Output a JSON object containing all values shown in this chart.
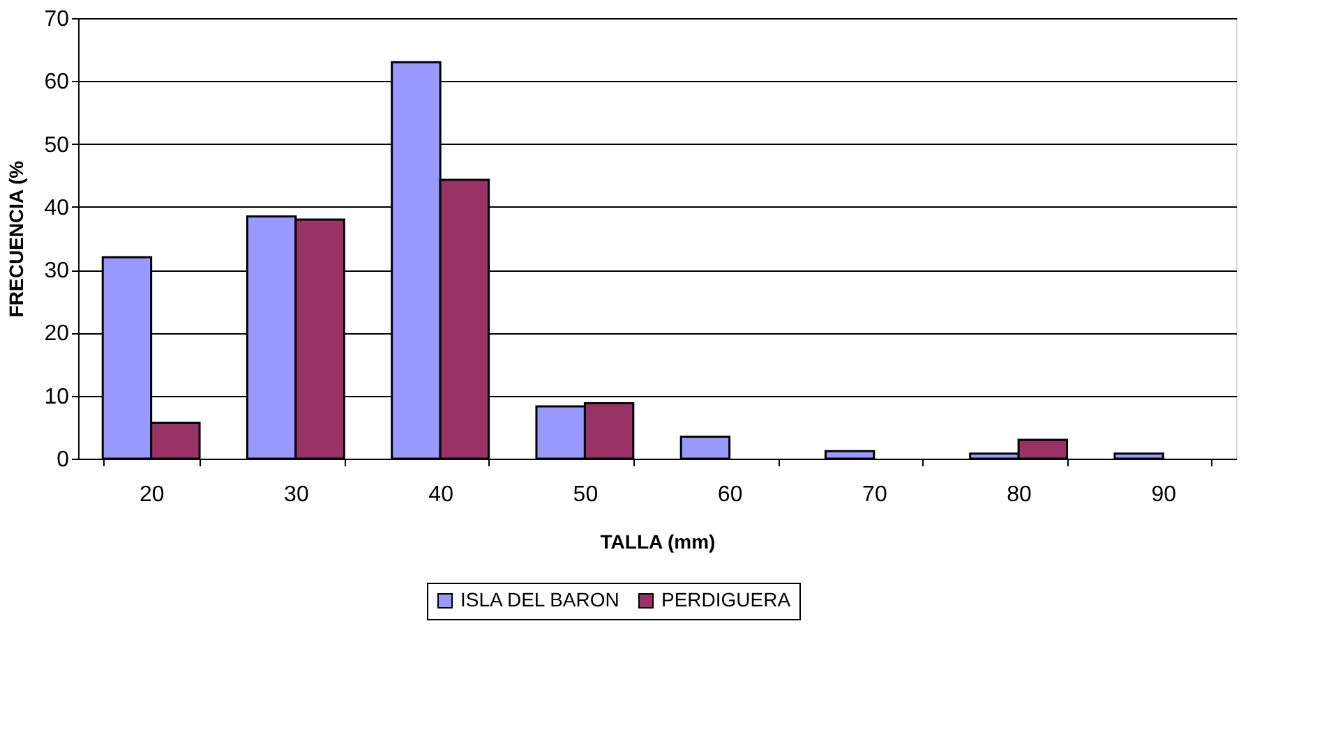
{
  "chart_data": {
    "type": "bar",
    "xlabel": "TALLA (mm)",
    "ylabel": "FRECUENCIA (%",
    "categories": [
      "20",
      "30",
      "40",
      "50",
      "60",
      "70",
      "80",
      "90"
    ],
    "series": [
      {
        "name": "ISLA DEL BARON",
        "color": "#9999ff",
        "values": [
          32,
          38.5,
          63,
          8.3,
          3.5,
          1.2,
          0.8,
          0.8
        ]
      },
      {
        "name": "PERDIGUERA",
        "color": "#993366",
        "values": [
          5.7,
          38,
          44.3,
          8.8,
          null,
          null,
          3,
          null
        ]
      }
    ],
    "ylim": [
      0,
      70
    ],
    "yticks": [
      0,
      10,
      20,
      30,
      40,
      50,
      60,
      70
    ],
    "grid": "y",
    "legend": "bottom"
  }
}
